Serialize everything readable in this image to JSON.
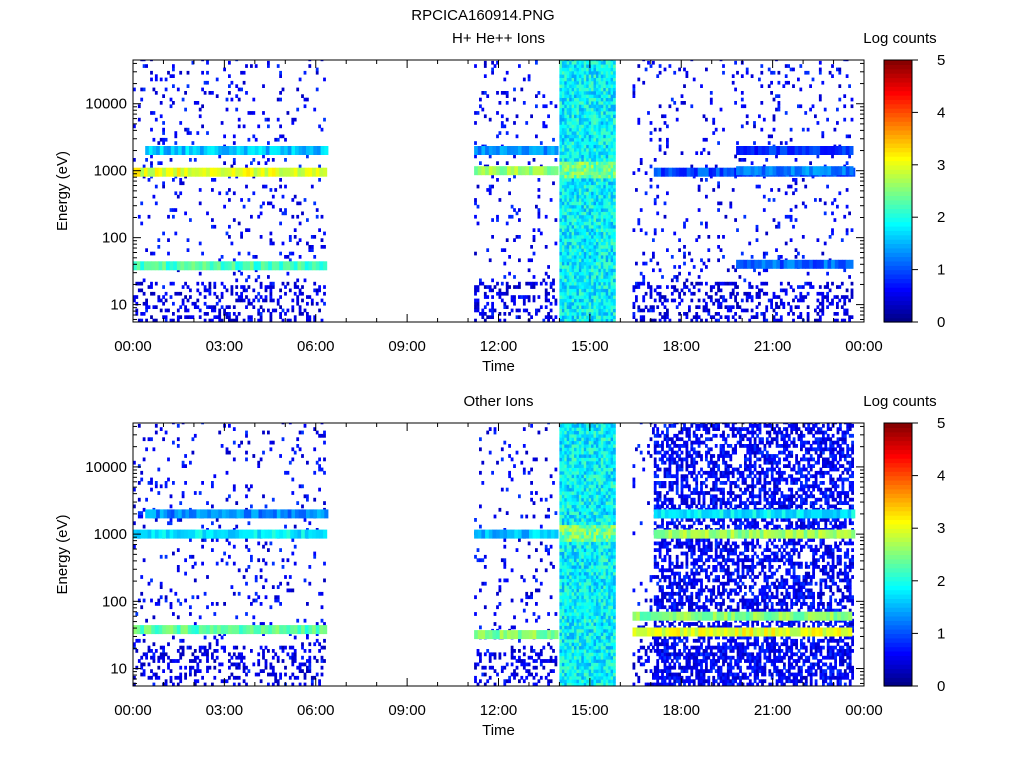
{
  "figure_title": "RPCICA160914.PNG",
  "chart_data": [
    {
      "type": "heatmap",
      "title": "H+ He++ Ions",
      "xlabel": "Time",
      "ylabel": "Energy (eV)",
      "x_ticks": [
        "00:00",
        "03:00",
        "06:00",
        "09:00",
        "12:00",
        "15:00",
        "18:00",
        "21:00",
        "00:00"
      ],
      "y_ticks": [
        "10",
        "100",
        "1000",
        "10000"
      ],
      "y_scale": "log",
      "ylim": [
        5.5,
        45000
      ],
      "xlim_hours": [
        0,
        24
      ],
      "colorbar": {
        "label": "Log counts",
        "ticks": [
          "0",
          "1",
          "2",
          "3",
          "4",
          "5"
        ],
        "range": [
          0,
          5
        ]
      },
      "data_intervals_hours": [
        [
          0.0,
          6.3
        ],
        [
          11.2,
          13.9
        ],
        [
          14.0,
          15.8
        ],
        [
          16.4,
          17.1
        ],
        [
          17.1,
          19.8
        ],
        [
          19.8,
          23.6
        ]
      ],
      "bands": [
        {
          "t": [
            0.0,
            6.3
          ],
          "energy_eV": 950,
          "log_counts": 3.0
        },
        {
          "t": [
            0.4,
            6.3
          ],
          "energy_eV": 2000,
          "log_counts": 1.6
        },
        {
          "t": [
            0.0,
            6.3
          ],
          "energy_eV": 38,
          "log_counts": 2.2
        },
        {
          "t": [
            11.2,
            13.9
          ],
          "energy_eV": 1000,
          "log_counts": 2.6
        },
        {
          "t": [
            11.2,
            13.9
          ],
          "energy_eV": 2000,
          "log_counts": 1.4
        },
        {
          "t": [
            17.1,
            23.6
          ],
          "energy_eV": 950,
          "log_counts": 1.0
        },
        {
          "t": [
            19.8,
            23.6
          ],
          "energy_eV": 1000,
          "log_counts": 1.2
        },
        {
          "t": [
            19.8,
            23.6
          ],
          "energy_eV": 40,
          "log_counts": 1.1
        },
        {
          "t": [
            19.8,
            23.6
          ],
          "energy_eV": 2000,
          "log_counts": 0.8
        }
      ]
    },
    {
      "type": "heatmap",
      "title": "Other Ions",
      "xlabel": "Time",
      "ylabel": "Energy (eV)",
      "x_ticks": [
        "00:00",
        "03:00",
        "06:00",
        "09:00",
        "12:00",
        "15:00",
        "18:00",
        "21:00",
        "00:00"
      ],
      "y_ticks": [
        "10",
        "100",
        "1000",
        "10000"
      ],
      "y_scale": "log",
      "ylim": [
        5.5,
        45000
      ],
      "xlim_hours": [
        0,
        24
      ],
      "colorbar": {
        "label": "Log counts",
        "ticks": [
          "0",
          "1",
          "2",
          "3",
          "4",
          "5"
        ],
        "range": [
          0,
          5
        ]
      },
      "data_intervals_hours": [
        [
          0.0,
          6.3
        ],
        [
          11.2,
          13.9
        ],
        [
          14.0,
          15.8
        ],
        [
          16.4,
          17.1
        ],
        [
          17.1,
          23.6
        ]
      ],
      "bands": [
        {
          "t": [
            0.0,
            6.3
          ],
          "energy_eV": 1000,
          "log_counts": 1.8
        },
        {
          "t": [
            0.4,
            6.3
          ],
          "energy_eV": 2000,
          "log_counts": 1.3
        },
        {
          "t": [
            0.0,
            6.3
          ],
          "energy_eV": 38,
          "log_counts": 2.3
        },
        {
          "t": [
            11.2,
            13.9
          ],
          "energy_eV": 1000,
          "log_counts": 1.6
        },
        {
          "t": [
            11.2,
            13.9
          ],
          "energy_eV": 32,
          "log_counts": 2.5
        },
        {
          "t": [
            17.1,
            23.6
          ],
          "energy_eV": 1000,
          "log_counts": 2.6
        },
        {
          "t": [
            17.1,
            23.6
          ],
          "energy_eV": 2000,
          "log_counts": 1.8
        },
        {
          "t": [
            16.4,
            23.6
          ],
          "energy_eV": 60,
          "log_counts": 2.5
        },
        {
          "t": [
            16.4,
            23.6
          ],
          "energy_eV": 35,
          "log_counts": 3.0
        }
      ]
    }
  ]
}
